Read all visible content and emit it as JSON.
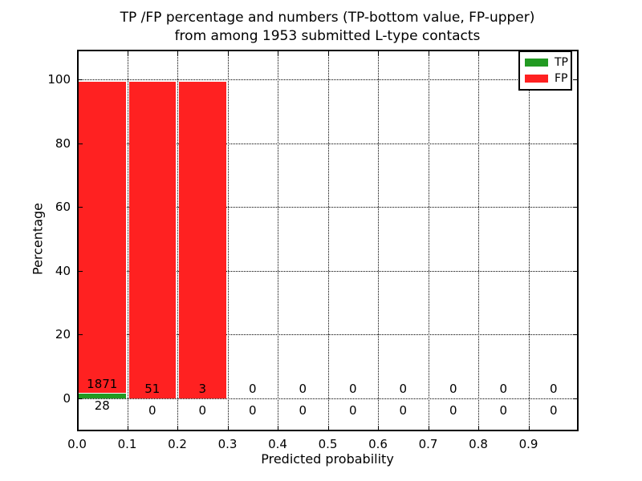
{
  "chart_data": {
    "type": "bar",
    "stacked": true,
    "title_lines": [
      "TP /FP percentage and numbers (TP-bottom value, FP-upper)",
      "from among 1953 submitted L-type contacts"
    ],
    "xlabel": "Predicted probability",
    "ylabel": "Percentage",
    "xlim": [
      0.0,
      1.0
    ],
    "ylim": [
      -10,
      110
    ],
    "grid": "dotted",
    "bin_width": 0.1,
    "bin_starts": [
      0.0,
      0.1,
      0.2,
      0.3,
      0.4,
      0.5,
      0.6,
      0.7,
      0.8,
      0.9
    ],
    "x_ticks": [
      "0.0",
      "0.1",
      "0.2",
      "0.3",
      "0.4",
      "0.5",
      "0.6",
      "0.7",
      "0.8",
      "0.9"
    ],
    "y_ticks": [
      0,
      20,
      40,
      60,
      80,
      100
    ],
    "series": [
      {
        "name": "TP",
        "color": "#229a22",
        "counts": [
          28,
          0,
          0,
          0,
          0,
          0,
          0,
          0,
          0,
          0
        ],
        "percent": [
          1.47,
          0,
          0,
          0,
          0,
          0,
          0,
          0,
          0,
          0
        ]
      },
      {
        "name": "FP",
        "color": "#ff2121",
        "counts": [
          1871,
          51,
          3,
          0,
          0,
          0,
          0,
          0,
          0,
          0
        ],
        "percent": [
          98.53,
          100,
          100,
          0,
          0,
          0,
          0,
          0,
          0,
          0
        ]
      }
    ],
    "annotations": {
      "fp_labels": [
        "1871",
        "51",
        "3",
        "0",
        "0",
        "0",
        "0",
        "0",
        "0",
        "0"
      ],
      "tp_labels": [
        "28",
        "0",
        "0",
        "0",
        "0",
        "0",
        "0",
        "0",
        "0",
        "0"
      ]
    },
    "legend": {
      "position": "upper right",
      "entries": [
        {
          "label": "TP",
          "color": "#229a22"
        },
        {
          "label": "FP",
          "color": "#ff2121"
        }
      ]
    }
  }
}
